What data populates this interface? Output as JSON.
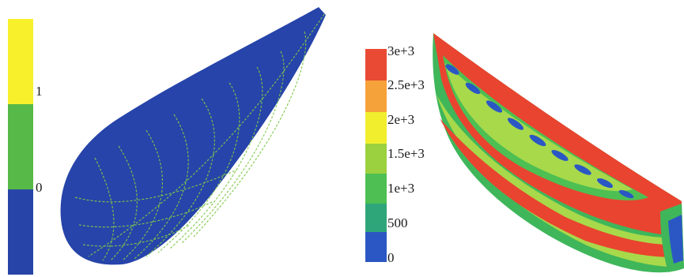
{
  "left_legend": {
    "bands": [
      {
        "color": "#f7f02a"
      },
      {
        "color": "#57b947"
      },
      {
        "color": "#2745a8"
      }
    ],
    "ticks": [
      "1",
      "0"
    ]
  },
  "right_legend": {
    "bands": [
      {
        "color": "#e84a33"
      },
      {
        "color": "#f6a23a"
      },
      {
        "color": "#f1ee2e"
      },
      {
        "color": "#9bd13f"
      },
      {
        "color": "#4dbf53"
      },
      {
        "color": "#2fa67a"
      },
      {
        "color": "#2b57c4"
      }
    ],
    "ticks": [
      "3e+3",
      "2.5e+3",
      "2e+3",
      "1.5e+3",
      "1e+3",
      "500",
      "0"
    ]
  },
  "colors": {
    "hull_blue": "#2644a9",
    "mesh_green": "#7fc94a",
    "hot_red": "#e9442f",
    "mid_green": "#3fb65a",
    "light_green": "#a8d94a"
  }
}
